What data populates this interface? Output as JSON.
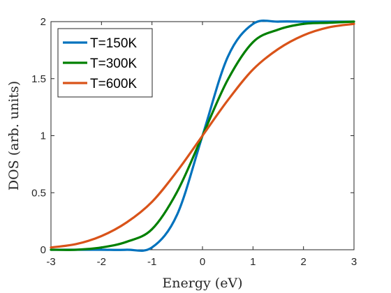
{
  "chart_data": {
    "type": "line",
    "xlabel": "Energy (eV)",
    "ylabel": "DOS (arb. units)",
    "xlim": [
      -3,
      3
    ],
    "ylim": [
      0,
      2
    ],
    "xticks": [
      "-3",
      "-2",
      "-1",
      "0",
      "1",
      "2",
      "3"
    ],
    "yticks": [
      "0",
      "0.5",
      "1",
      "1.5",
      "2"
    ],
    "grid": false,
    "legend_position": "top-left",
    "x": [
      -3,
      -2.5,
      -2,
      -1.5,
      -1,
      -0.5,
      0,
      0.5,
      1,
      1.5,
      2,
      2.5,
      3
    ],
    "series": [
      {
        "name": "T=150K",
        "color": "#0072BD",
        "values": [
          0.0,
          0.0,
          0.0,
          0.0,
          0.02,
          0.31,
          1.0,
          1.69,
          1.98,
          2.0,
          2.0,
          2.0,
          2.0
        ]
      },
      {
        "name": "T=300K",
        "color": "#008000",
        "values": [
          0.0,
          0.0,
          0.02,
          0.07,
          0.18,
          0.51,
          1.0,
          1.49,
          1.82,
          1.93,
          1.98,
          1.99,
          2.0
        ]
      },
      {
        "name": "T=600K",
        "color": "#D95319",
        "values": [
          0.02,
          0.05,
          0.12,
          0.24,
          0.42,
          0.69,
          1.0,
          1.31,
          1.58,
          1.76,
          1.88,
          1.95,
          1.98
        ]
      }
    ]
  }
}
